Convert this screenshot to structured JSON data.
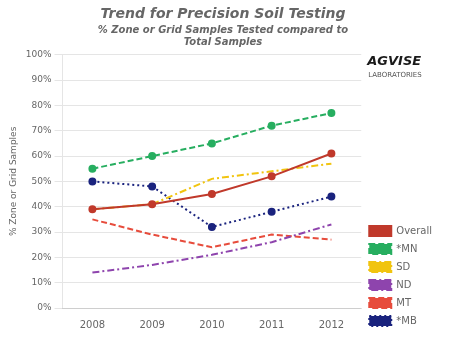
{
  "chart_data": {
    "type": "line",
    "title": "Trend for Precision Soil Testing",
    "subtitle": "% Zone or Grid Samples Tested compared to\nTotal Samples",
    "ylabel": "% Zone or Grid Samples",
    "annotations": [
      "AGVISE",
      "LABORATORIES"
    ],
    "categories": [
      "2008",
      "2009",
      "2010",
      "2011",
      "2012"
    ],
    "series": [
      {
        "name": "Overall",
        "color": "#c0392b",
        "marker": "circle",
        "line_style": "solid",
        "values": [
          39,
          41,
          45,
          52,
          61
        ]
      },
      {
        "name": "*MN",
        "color": "#27ae60",
        "marker": "circle",
        "line_style": "dashed",
        "values": [
          55,
          60,
          65,
          72,
          77
        ]
      },
      {
        "name": "SD",
        "color": "#f1c40f",
        "marker": "none",
        "line_style": "dashdot",
        "values": [
          39,
          41,
          51,
          54,
          57
        ]
      },
      {
        "name": "ND",
        "color": "#8e44ad",
        "marker": "none",
        "line_style": "dashdot",
        "values": [
          14,
          17,
          21,
          26,
          33
        ]
      },
      {
        "name": "MT",
        "color": "#e74c3c",
        "marker": "none",
        "line_style": "dashed",
        "values": [
          35,
          29,
          24,
          29,
          27
        ]
      },
      {
        "name": "*MB",
        "color": "#1a237e",
        "marker": "circle",
        "line_style": "dotted",
        "values": [
          50,
          48,
          32,
          38,
          44
        ]
      }
    ],
    "ylim": [
      0,
      100
    ],
    "yticks": [
      {
        "value": 0,
        "label": "0%"
      },
      {
        "value": 10,
        "label": "10%"
      },
      {
        "value": 20,
        "label": "20%"
      },
      {
        "value": 30,
        "label": "30%"
      },
      {
        "value": 40,
        "label": "40%"
      },
      {
        "value": 50,
        "label": "50%"
      },
      {
        "value": 60,
        "label": "60%"
      },
      {
        "value": 70,
        "label": "70%"
      },
      {
        "value": 80,
        "label": "80%"
      },
      {
        "value": 90,
        "label": "90%"
      },
      {
        "value": 100,
        "label": "100%"
      }
    ],
    "grid": "y",
    "legend": "right"
  }
}
